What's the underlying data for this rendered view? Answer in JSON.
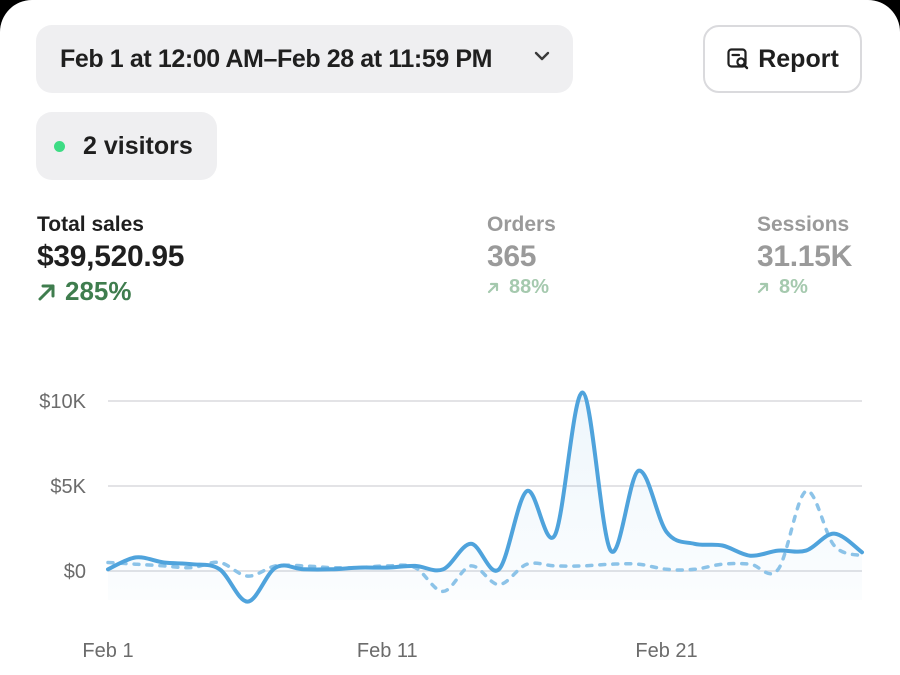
{
  "date_range": {
    "label": "Feb 1 at 12:00 AM–Feb 28 at 11:59 PM"
  },
  "report_button": {
    "label": "Report"
  },
  "visitors": {
    "label": "2 visitors"
  },
  "metrics": [
    {
      "label": "Total sales",
      "value": "$39,520.95",
      "change": "285%"
    },
    {
      "label": "Orders",
      "value": "365",
      "change": "88%"
    },
    {
      "label": "Sessions",
      "value": "31.15K",
      "change": "8%"
    }
  ],
  "colors": {
    "accent_line": "#4fa3dc",
    "comparison_line": "#8cc3e8",
    "positive_change": "#3f7d4e",
    "live_dot": "#3ddc84"
  },
  "chart_data": {
    "type": "line",
    "y_ticks": [
      "$10K",
      "$5K",
      "$0"
    ],
    "x_ticks": [
      "Feb 1",
      "Feb 11",
      "Feb 21"
    ],
    "ylim": [
      0,
      10000
    ],
    "grid": true,
    "x": [
      1,
      2,
      3,
      4,
      5,
      6,
      7,
      8,
      9,
      10,
      11,
      12,
      13,
      14,
      15,
      16,
      17,
      18,
      19,
      20,
      21,
      22,
      23,
      24,
      25,
      26,
      27,
      28
    ],
    "series": [
      {
        "style": "solid",
        "values": [
          100,
          800,
          500,
          400,
          100,
          -1800,
          200,
          100,
          100,
          200,
          200,
          300,
          100,
          1600,
          100,
          4700,
          2100,
          10500,
          1200,
          5900,
          2300,
          1600,
          1500,
          900,
          1200,
          1200,
          2200,
          1100
        ]
      },
      {
        "style": "dashed",
        "values": [
          500,
          400,
          300,
          200,
          500,
          -300,
          300,
          300,
          200,
          200,
          300,
          200,
          -1200,
          300,
          -800,
          400,
          300,
          300,
          400,
          400,
          100,
          100,
          400,
          400,
          100,
          4700,
          1500,
          900
        ]
      }
    ]
  }
}
